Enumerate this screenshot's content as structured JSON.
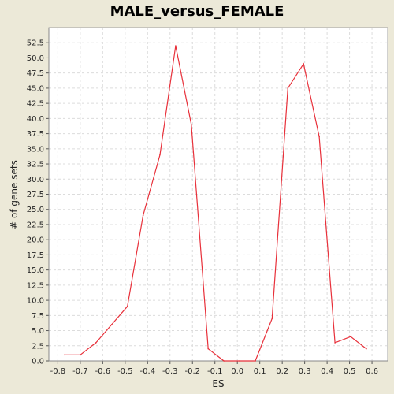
{
  "chart_data": {
    "type": "line",
    "title": "MALE_versus_FEMALE",
    "xlabel": "ES",
    "ylabel": "# of gene sets",
    "xlim": [
      -0.84,
      0.67
    ],
    "ylim": [
      0,
      55
    ],
    "grid": true,
    "x_ticks": [
      "-0.8",
      "-0.7",
      "-0.6",
      "-0.5",
      "-0.4",
      "-0.3",
      "-0.2",
      "-0.1",
      "0.0",
      "0.1",
      "0.2",
      "0.3",
      "0.4",
      "0.5",
      "0.6"
    ],
    "y_ticks": [
      "0.0",
      "2.5",
      "5.0",
      "7.5",
      "10.0",
      "12.5",
      "15.0",
      "17.5",
      "20.0",
      "22.5",
      "25.0",
      "27.5",
      "30.0",
      "32.5",
      "35.0",
      "37.5",
      "40.0",
      "42.5",
      "45.0",
      "47.5",
      "50.0",
      "52.5"
    ],
    "series": [
      {
        "color": "#e8303a",
        "x": [
          -0.77,
          -0.7,
          -0.63,
          -0.56,
          -0.49,
          -0.42,
          -0.345,
          -0.275,
          -0.205,
          -0.13,
          -0.06,
          0.01,
          0.08,
          0.155,
          0.225,
          0.295,
          0.365,
          0.435,
          0.505,
          0.575
        ],
        "y": [
          1,
          1,
          3,
          6,
          9,
          24,
          34,
          52,
          39,
          2,
          0,
          0,
          0,
          7,
          45,
          49,
          37,
          3,
          4,
          2
        ]
      }
    ]
  }
}
